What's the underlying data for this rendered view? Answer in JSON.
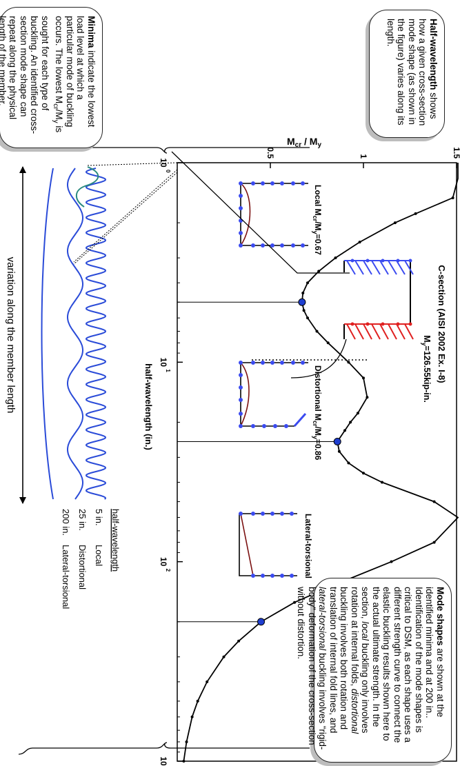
{
  "chart_data": {
    "type": "line",
    "title": "C-section (AISI 2002 Ex. I-8)",
    "subtitle": "My=126.55kip-in.",
    "xlabel": "half-wavelength (in.)",
    "ylabel": "Mcr / My",
    "xscale": "log",
    "xlim": [
      1,
      1000
    ],
    "ylim": [
      0,
      1.5
    ],
    "xticks": [
      {
        "value": 1,
        "label": "10"
      },
      {
        "value": 10,
        "label": "10"
      },
      {
        "value": 100,
        "label": "10"
      },
      {
        "value": 1000,
        "label": "10"
      }
    ],
    "xtick_exponents": [
      "0",
      "1",
      "2",
      "3"
    ],
    "yticks": [
      {
        "value": 0.5,
        "label": "0.5"
      },
      {
        "value": 1,
        "label": "1"
      },
      {
        "value": 1.5,
        "label": "1.5"
      }
    ],
    "grid": false,
    "series": [
      {
        "x": [
          1.0,
          1.2,
          1.5,
          1.8,
          2.0,
          2.5,
          3.0,
          3.5,
          4.0,
          4.5,
          5.0,
          5.5,
          6.0,
          7.0,
          8.0,
          10.0,
          12.0,
          15.0,
          18.0,
          20.0,
          22.0,
          25.0,
          28.0,
          32.0,
          36.0,
          40.0,
          50.0,
          60.0,
          80.0,
          100.0,
          130.0,
          160.0,
          200.0,
          250.0,
          300.0,
          400.0,
          500.0,
          600.0,
          800.0,
          1000.0
        ],
        "y": [
          1.9,
          1.75,
          1.48,
          1.28,
          1.17,
          0.98,
          0.85,
          0.76,
          0.7,
          0.675,
          0.67,
          0.68,
          0.7,
          0.75,
          0.81,
          0.92,
          1.0,
          1.02,
          0.97,
          0.93,
          0.9,
          0.86,
          0.87,
          0.92,
          1.0,
          1.1,
          1.38,
          1.55,
          1.38,
          1.15,
          0.85,
          0.63,
          0.45,
          0.33,
          0.25,
          0.16,
          0.11,
          0.08,
          0.05,
          0.035
        ]
      }
    ],
    "minima": [
      {
        "x": 5.0,
        "y": 0.67,
        "label": "Local Mcr/My=0.67"
      },
      {
        "x": 25.0,
        "y": 0.86,
        "label": "Distortional Mcr/My=0.86"
      },
      {
        "x": 200.0,
        "y": 0.45,
        "label": "Lateral-torsional"
      }
    ],
    "annotations": {
      "local_label": "Local M",
      "local_value": "=0.67",
      "distortional_label": "Distortional M",
      "distortional_value": "=0.86",
      "lateral_label": "Lateral-torsional",
      "sub_cr": "cr",
      "sub_y": "y",
      "my_label": "M",
      "my_value": "=126.55kip-in."
    }
  },
  "inset": {
    "heading": "half-wavelength",
    "rows": [
      {
        "length": "5 in.",
        "mode": "Local"
      },
      {
        "length": "25 in.",
        "mode": "Distortional"
      },
      {
        "length": "200 in.",
        "mode": "Lateral-torsional"
      }
    ],
    "arrow_label": "variation along the member length"
  },
  "callouts": {
    "minima": {
      "bold": "Minima",
      "text": " indicate the lowest load level at which a particular mode of buckling occurs. The lowest M",
      "sub_cr": "cr",
      "mid": "/M",
      "sub_y": "y",
      "tail": " is sought for each type of buckling. An identified cross-section mode shape can repeat along the physical length of the member."
    },
    "mode_shapes": {
      "bold": "Mode shapes",
      "text1": " are shown at the identified minima and at 200 in.. Identification of the mode shapes is critical to DSM, as each shape uses a different strength curve to connect the elastic buckling results shown here to the actual ultimate strength. In the section, ",
      "local": "local",
      "text2": " buckling only involves rotation at internal folds, ",
      "distortional": "distortional",
      "text3": " buckling involves both rotation and translation of internal fold lines, and ",
      "lateral": "lateral-torsional",
      "text4": " buckling involves “rigid-body” deformation of the cross-section without distortion."
    },
    "half_wavelength": {
      "bold": "Half-wavelength",
      "text": " shows how a given cross-section mode shape (as shown in the figure) varies along its length."
    }
  },
  "colors": {
    "curve": "#000000",
    "minima_marker": "#1f3fd0",
    "section_nodes": "#3b4bf0",
    "section_compressed": "#e02020",
    "deformed": "#7a1010",
    "wave_local": "#2a4bd8",
    "wave_distortional": "#2a4bd8",
    "wave_lateral": "#2a4bd8",
    "wave_teal": "#2a8a80"
  }
}
